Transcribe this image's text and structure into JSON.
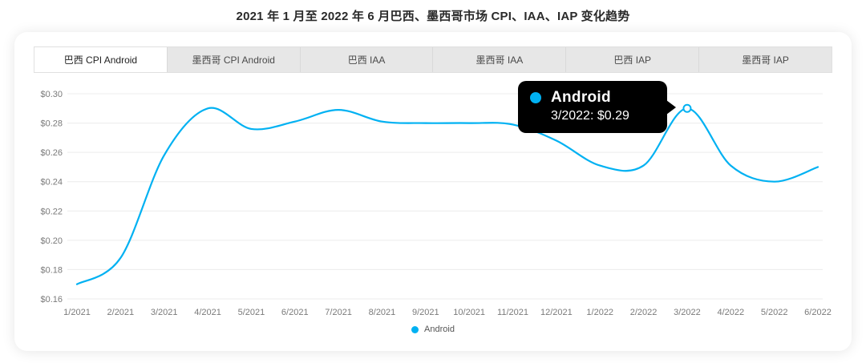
{
  "page": {
    "title": "2021 年 1 月至 2022 年 6 月巴西、墨西哥市场 CPI、IAA、IAP 变化趋势"
  },
  "tabs": [
    {
      "id": "brazil-cpi-android",
      "label": "巴西 CPI Android",
      "active": true
    },
    {
      "id": "mexico-cpi-android",
      "label": "墨西哥 CPI Android",
      "active": false
    },
    {
      "id": "brazil-iaa",
      "label": "巴西 IAA",
      "active": false
    },
    {
      "id": "mexico-iaa",
      "label": "墨西哥 IAA",
      "active": false
    },
    {
      "id": "brazil-iap",
      "label": "巴西 IAP",
      "active": false
    },
    {
      "id": "mexico-iap",
      "label": "墨西哥 IAP",
      "active": false
    }
  ],
  "chart_data": {
    "type": "line",
    "title": "巴西 CPI Android",
    "categories": [
      "1/2021",
      "2/2021",
      "3/2021",
      "4/2021",
      "5/2021",
      "6/2021",
      "7/2021",
      "8/2021",
      "9/2021",
      "10/2021",
      "11/2021",
      "12/2021",
      "1/2022",
      "2/2022",
      "3/2022",
      "4/2022",
      "5/2022",
      "6/2022"
    ],
    "series": [
      {
        "name": "Android",
        "color": "#00b1f2",
        "values": [
          0.17,
          0.188,
          0.258,
          0.29,
          0.276,
          0.281,
          0.289,
          0.281,
          0.28,
          0.28,
          0.279,
          0.268,
          0.251,
          0.251,
          0.29,
          0.251,
          0.24,
          0.25
        ]
      }
    ],
    "y_tick_labels": [
      "$0.30",
      "$0.28",
      "$0.26",
      "$0.24",
      "$0.22",
      "$0.20",
      "$0.18",
      "$0.16"
    ],
    "ylim": [
      0.16,
      0.3
    ],
    "xlabel": "",
    "ylabel": "",
    "grid": "horizontal",
    "legend_position": "bottom"
  },
  "tooltip": {
    "series": "Android",
    "label": "3/2022: $0.29",
    "point_index": 14,
    "point_value": 0.29,
    "bg": "#000000",
    "text_color": "#ffffff"
  },
  "colors": {
    "line": "#00b1f2",
    "grid": "#ececec",
    "axis_text": "#7a7a7a",
    "tab_active_bg": "#ffffff",
    "tab_inactive_bg": "#e7e7e7",
    "tooltip_bg": "#000000"
  }
}
